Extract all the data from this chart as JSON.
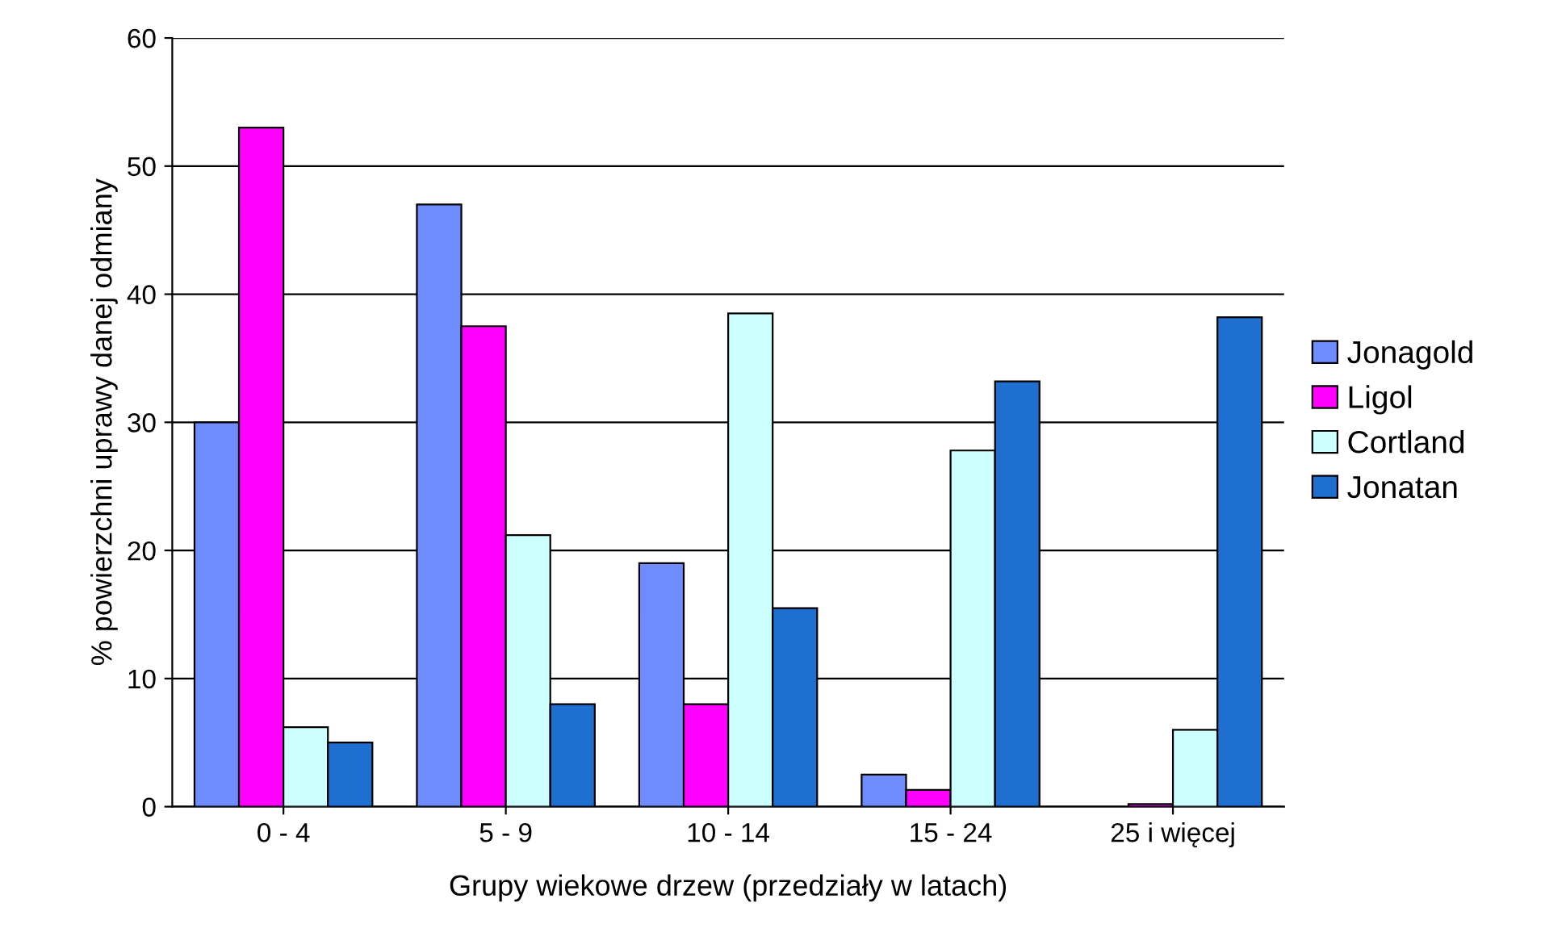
{
  "chart_data": {
    "type": "bar",
    "xlabel": "Grupy wiekowe drzew (przedziały w latach)",
    "ylabel": "% powierzchni uprawy danej odmiany",
    "categories": [
      "0 - 4",
      "5 - 9",
      "10 - 14",
      "15 - 24",
      "25 i więcej"
    ],
    "series": [
      {
        "name": "Jonagold",
        "color": "#6f8cff",
        "values": [
          30,
          47,
          19,
          2.5,
          null
        ]
      },
      {
        "name": "Ligol",
        "color": "#ff00ff",
        "values": [
          53,
          37.5,
          8,
          1.3,
          0.2
        ]
      },
      {
        "name": "Cortland",
        "color": "#ccffff",
        "values": [
          6.2,
          21.2,
          38.5,
          27.8,
          6
        ]
      },
      {
        "name": "Jonatan",
        "color": "#1f6fd0",
        "values": [
          5,
          8,
          15.5,
          33.2,
          38.2
        ]
      }
    ],
    "ylim": [
      0,
      60
    ],
    "yticks": [
      0,
      10,
      20,
      30,
      40,
      50,
      60
    ],
    "grid": "y",
    "legend": "right"
  }
}
